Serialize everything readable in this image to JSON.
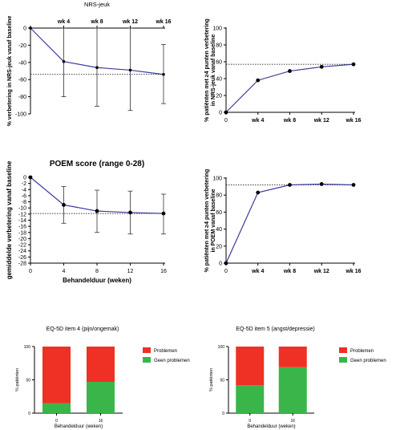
{
  "colors": {
    "line": "#3c3c9c",
    "marker": "#000000",
    "axis": "#000000",
    "ref_line": "#000000",
    "problemen": "#ee3124",
    "geen_problemen": "#3ab54a"
  },
  "chart_data": [
    {
      "id": "nrs_mean",
      "type": "line",
      "title": "NRS-jeuk",
      "ylabel": "% verbetering in NRS-jeuk vanaf baseline",
      "xlabel": "",
      "x_axis_position": "top",
      "x_tick_labels": [
        "",
        "wk 4",
        "wk 8",
        "wk 12",
        "wk 16"
      ],
      "y_ticks": [
        "0",
        "-20",
        "-40",
        "-60",
        "-80",
        "-100"
      ],
      "ylim": [
        -100,
        0
      ],
      "reference_line_y": -54,
      "x": [
        0,
        4,
        8,
        12,
        16
      ],
      "y": [
        0,
        -39,
        -46,
        -49,
        -54
      ],
      "error_bars": {
        "low": [
          0,
          -80,
          -91,
          -96,
          -88
        ],
        "high": [
          0,
          0,
          0,
          0,
          -19
        ]
      },
      "markers": false,
      "grid": false
    },
    {
      "id": "nrs_pct",
      "type": "line",
      "title": "",
      "ylabel": "% patiënten met ≥4 punten verbetering in NRS-jeuk vanaf baseline",
      "xlabel": "",
      "x_tick_labels": [
        "0",
        "wk 4",
        "wk 8",
        "wk 12",
        "wk 16"
      ],
      "y_ticks": [
        "0",
        "20",
        "40",
        "60",
        "80",
        "100"
      ],
      "ylim": [
        0,
        100
      ],
      "reference_line_y": 57,
      "x": [
        0,
        4,
        8,
        12,
        16
      ],
      "y": [
        0,
        38,
        49,
        54,
        57
      ],
      "markers": true,
      "grid": false
    },
    {
      "id": "poem_mean",
      "type": "line",
      "title": "POEM score (range 0-28)",
      "ylabel": "gemiddelde verbetering vanaf baseline",
      "xlabel": "Behandelduur (weken)",
      "x_tick_labels": [
        "0",
        "4",
        "8",
        "12",
        "16"
      ],
      "y_ticks": [
        "0",
        "-2",
        "-4",
        "-6",
        "-8",
        "-10",
        "-12",
        "-14",
        "-16",
        "-18",
        "-20",
        "-22",
        "-24",
        "-26",
        "-28"
      ],
      "ylim": [
        -28,
        0
      ],
      "reference_line_y": -11.8,
      "x": [
        0,
        4,
        8,
        12,
        16
      ],
      "y": [
        0,
        -9,
        -11,
        -11.5,
        -11.8
      ],
      "error_bars": {
        "low": [
          0,
          -15,
          -18,
          -18.5,
          -18.5
        ],
        "high": [
          0,
          -3,
          -4.2,
          -4.5,
          -5.5
        ]
      },
      "markers": true,
      "grid": false
    },
    {
      "id": "poem_pct",
      "type": "line",
      "title": "",
      "ylabel": "% patiënten met ≥4 punten verbetering in POEM vanaf baseline",
      "xlabel": "",
      "x_tick_labels": [
        "0",
        "wk 4",
        "wk 8",
        "wk 12",
        "wk 16"
      ],
      "y_ticks": [
        "0",
        "20",
        "40",
        "60",
        "80",
        "100"
      ],
      "ylim": [
        0,
        100
      ],
      "reference_line_y": 92,
      "x": [
        0,
        4,
        8,
        12,
        16
      ],
      "y": [
        0,
        83,
        92,
        93,
        92
      ],
      "markers": true,
      "grid": false
    },
    {
      "id": "eq5d_item4",
      "type": "bar",
      "stacked": true,
      "title": "EQ-5D item 4 (pijn/ongemak)",
      "ylabel": "% patiënten",
      "xlabel": "Behandelduur (weken)",
      "categories": [
        "0",
        "16"
      ],
      "y_ticks": [
        "0",
        "50",
        "100"
      ],
      "ylim": [
        0,
        100
      ],
      "series": [
        {
          "name": "Geen problemen",
          "values": [
            15,
            47
          ]
        },
        {
          "name": "Problemen",
          "values": [
            85,
            53
          ]
        }
      ],
      "legend": [
        "Problemen",
        "Geen problemen"
      ],
      "legend_position": "right"
    },
    {
      "id": "eq5d_item5",
      "type": "bar",
      "stacked": true,
      "title": "EQ-5D item 5 (angst/depressie)",
      "ylabel": "% patiënten",
      "xlabel": "Behandelduur (weken)",
      "categories": [
        "0",
        "16"
      ],
      "y_ticks": [
        "0",
        "50",
        "100"
      ],
      "ylim": [
        0,
        100
      ],
      "series": [
        {
          "name": "Geen problemen",
          "values": [
            42,
            69
          ]
        },
        {
          "name": "Problemen",
          "values": [
            58,
            31
          ]
        }
      ],
      "legend": [
        "Problemen",
        "Geen problemen"
      ],
      "legend_position": "right"
    }
  ]
}
